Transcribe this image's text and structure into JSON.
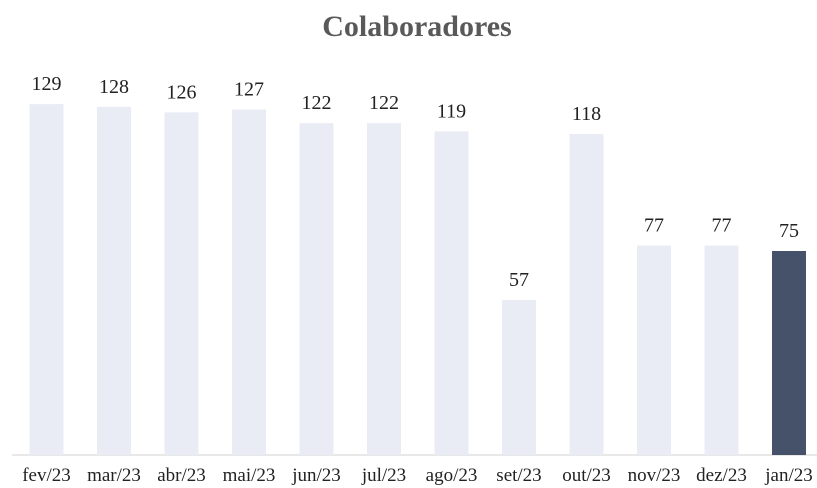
{
  "chart_data": {
    "type": "bar",
    "title": "Colaboradores",
    "categories": [
      "fev/23",
      "mar/23",
      "abr/23",
      "mai/23",
      "jun/23",
      "jul/23",
      "ago/23",
      "set/23",
      "out/23",
      "nov/23",
      "dez/23",
      "jan/23"
    ],
    "values": [
      129,
      128,
      126,
      127,
      122,
      122,
      119,
      57,
      118,
      77,
      77,
      75
    ],
    "colors": [
      "#e9ecf4",
      "#e9ecf4",
      "#e9ecf4",
      "#e9ecf4",
      "#e9ecf4",
      "#e9ecf4",
      "#e9ecf4",
      "#e9ecf4",
      "#e9ecf4",
      "#e9ecf4",
      "#e9ecf4",
      "#465269"
    ]
  }
}
